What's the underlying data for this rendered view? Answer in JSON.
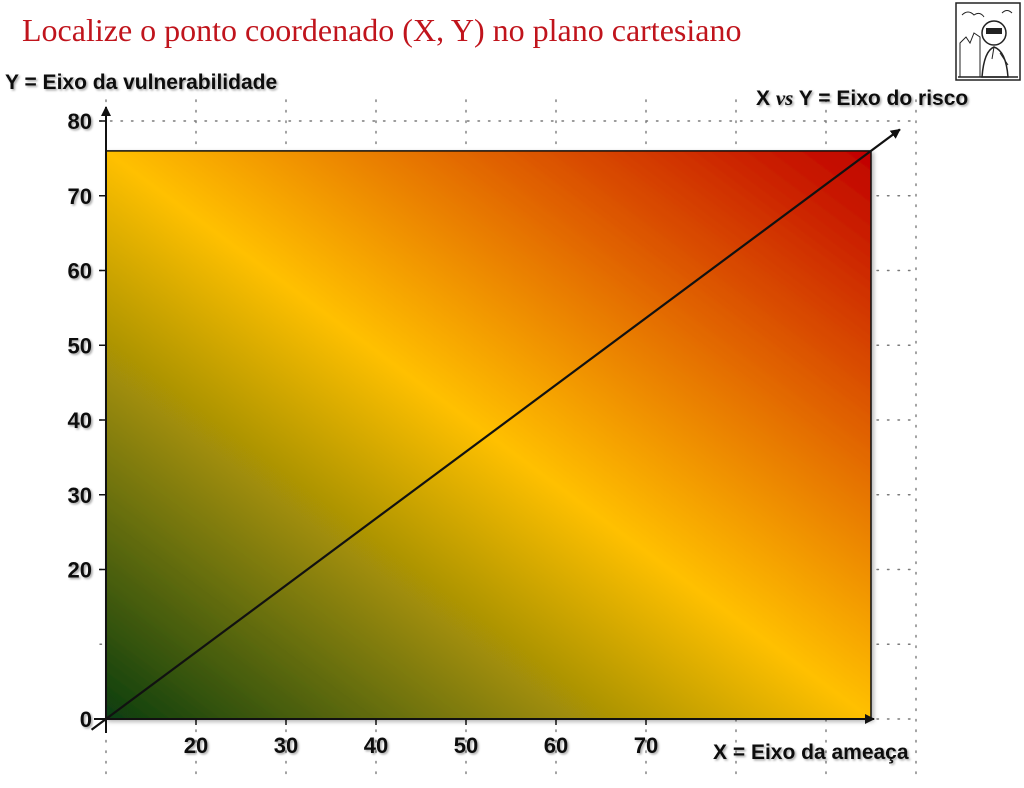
{
  "title": "Localize o ponto coordenado (X, Y) no plano cartesiano",
  "logo_icon": "cartoon-figure-icon",
  "colors": {
    "title": "#c0141c",
    "green": "#0b3d12",
    "yellow": "#ffc000",
    "red": "#c00000"
  },
  "chart_data": {
    "type": "line",
    "ylabel": "Y =  Eixo da vulnerabilidade",
    "xlabel": "X =  Eixo da ameaça",
    "diagonal_label": {
      "prefix": "X ",
      "vs": "vs",
      "suffix": " Y =  Eixo do risco"
    },
    "y_ticks": [
      0,
      20,
      30,
      40,
      50,
      60,
      70,
      80
    ],
    "x_ticks": [
      20,
      30,
      40,
      50,
      60,
      70
    ],
    "xlim": [
      10,
      100
    ],
    "ylim": [
      0,
      80
    ],
    "series": [
      {
        "x": [
          10,
          95
        ],
        "y": [
          0,
          76
        ]
      }
    ],
    "grid": true,
    "background": "gradient green (bottom-left) → yellow (diagonal) → red (top-right)"
  }
}
